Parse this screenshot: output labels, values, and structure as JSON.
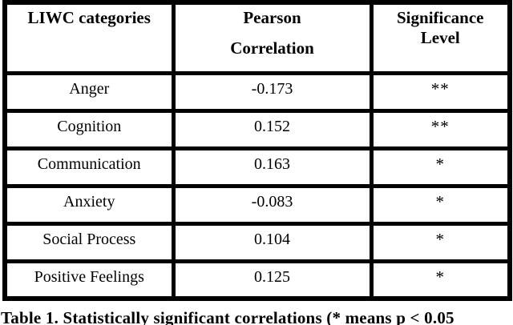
{
  "table": {
    "headers": {
      "col1": "LIWC categories",
      "col2_line1": "Pearson",
      "col2_line2": "Correlation",
      "col3_line1": "Significance",
      "col3_line2": "Level"
    },
    "rows": [
      {
        "category": "Anger",
        "correlation": "-0.173",
        "significance": "**"
      },
      {
        "category": "Cognition",
        "correlation": "0.152",
        "significance": "**"
      },
      {
        "category": "Communication",
        "correlation": "0.163",
        "significance": "*"
      },
      {
        "category": "Anxiety",
        "correlation": "-0.083",
        "significance": "*"
      },
      {
        "category": "Social Process",
        "correlation": "0.104",
        "significance": "*"
      },
      {
        "category": "Positive Feelings",
        "correlation": "0.125",
        "significance": "*"
      }
    ]
  },
  "caption": "Table 1. Statistically significant correlations (* means p < 0.05",
  "colors": {
    "border": "#000000",
    "text": "#000000",
    "background": "#ffffff"
  },
  "chart_data": {
    "type": "table",
    "title": "Table 1. Statistically significant correlations (* means p < 0.05",
    "columns": [
      "LIWC categories",
      "Pearson Correlation",
      "Significance Level"
    ],
    "rows": [
      [
        "Anger",
        -0.173,
        "**"
      ],
      [
        "Cognition",
        0.152,
        "**"
      ],
      [
        "Communication",
        0.163,
        "*"
      ],
      [
        "Anxiety",
        -0.083,
        "*"
      ],
      [
        "Social Process",
        0.104,
        "*"
      ],
      [
        "Positive Feelings",
        0.125,
        "*"
      ]
    ]
  }
}
